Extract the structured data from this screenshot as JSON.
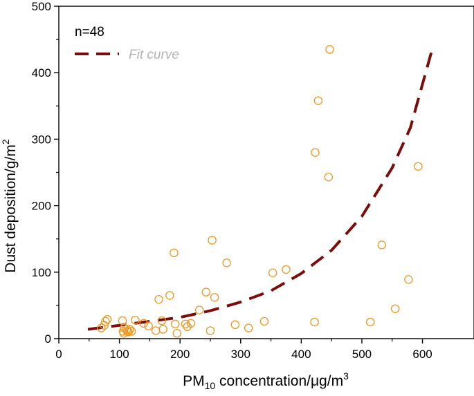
{
  "chart_data": {
    "type": "scatter",
    "title": "",
    "xlabel": {
      "base": "PM",
      "sub": "10",
      "mid": " concentration/μg/m",
      "sup": "3"
    },
    "ylabel": {
      "base": "Dust deposition/g/m",
      "sup": "2"
    },
    "xlim": [
      0,
      685
    ],
    "ylim": [
      0,
      500
    ],
    "x_ticks": [
      0,
      100,
      200,
      300,
      400,
      500,
      600
    ],
    "y_ticks": [
      0,
      100,
      200,
      300,
      400,
      500
    ],
    "grid": false,
    "legend_position": "top-left",
    "annotation": "n=48",
    "colors": {
      "points": "#f0961e",
      "fit": "#7b0c0c",
      "fit_label": "#b4b4b4"
    },
    "series": [
      {
        "kind": "scatter",
        "x": [
          70,
          75,
          77,
          80,
          105,
          106,
          107,
          108,
          112,
          113,
          115,
          117,
          126,
          140,
          148,
          160,
          165,
          170,
          172,
          183,
          190,
          192,
          195,
          209,
          212,
          218,
          232,
          243,
          250,
          253,
          257,
          277,
          291,
          313,
          339,
          353,
          375,
          422,
          423,
          428,
          445,
          447,
          514,
          533,
          555,
          577,
          593,
          120
        ],
        "y": [
          16,
          20,
          26,
          29,
          27,
          11,
          8,
          16,
          14,
          11,
          10,
          14,
          28,
          23,
          19,
          12,
          59,
          27,
          14,
          65,
          129,
          22,
          8,
          22,
          18,
          23,
          43,
          70,
          12,
          148,
          62,
          114,
          21,
          16,
          26,
          99,
          104,
          25,
          280,
          358,
          243,
          435,
          25,
          141,
          45,
          89,
          259,
          11
        ]
      },
      {
        "kind": "line",
        "name": "Fit curve",
        "x": [
          48,
          100,
          150,
          200,
          250,
          300,
          350,
          400,
          450,
          500,
          550,
          580,
          615
        ],
        "y": [
          14,
          20,
          26,
          32,
          42,
          55,
          72,
          98,
          133,
          184,
          257,
          317,
          432
        ]
      }
    ]
  }
}
